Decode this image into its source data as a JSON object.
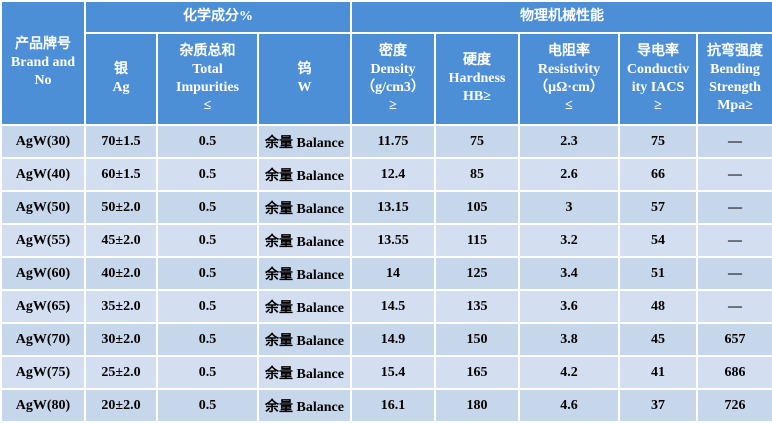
{
  "header": {
    "brand": [
      "产品牌号",
      "Brand and",
      "No"
    ],
    "group_chemical": "化学成分%",
    "group_physical": "物理机械性能",
    "columns": [
      [
        "银",
        "Ag"
      ],
      [
        "杂质总和",
        "Total",
        "Impurities",
        "≤"
      ],
      [
        "钨",
        "W"
      ],
      [
        "密度",
        "Density",
        "（g/cm3）",
        "≥"
      ],
      [
        "硬度",
        "Hardness",
        "HB≥"
      ],
      [
        "电阻率",
        "Resistivity",
        "（μΩ·cm）",
        "≤"
      ],
      [
        "导电率",
        "Conductiv",
        "ity IACS",
        "≥"
      ],
      [
        "抗弯强度",
        "Bending",
        "Strength",
        "Mpa≥"
      ]
    ]
  },
  "table": {
    "rows": [
      [
        "AgW(30)",
        "70±1.5",
        0.5,
        "余量 Balance",
        11.75,
        75,
        2.3,
        75,
        "—"
      ],
      [
        "AgW(40)",
        "60±1.5",
        0.5,
        "余量 Balance",
        12.4,
        85,
        2.6,
        66,
        "—"
      ],
      [
        "AgW(50)",
        "50±2.0",
        0.5,
        "余量 Balance",
        13.15,
        105,
        3,
        57,
        "—"
      ],
      [
        "AgW(55)",
        "45±2.0",
        0.5,
        "余量 Balance",
        13.55,
        115,
        3.2,
        54,
        "—"
      ],
      [
        "AgW(60)",
        "40±2.0",
        0.5,
        "余量 Balance",
        14,
        125,
        3.4,
        51,
        "—"
      ],
      [
        "AgW(65)",
        "35±2.0",
        0.5,
        "余量 Balance",
        14.5,
        135,
        3.6,
        48,
        "—"
      ],
      [
        "AgW(70)",
        "30±2.0",
        0.5,
        "余量 Balance",
        14.9,
        150,
        3.8,
        45,
        657
      ],
      [
        "AgW(75)",
        "25±2.0",
        0.5,
        "余量 Balance",
        15.4,
        165,
        4.2,
        41,
        686
      ],
      [
        "AgW(80)",
        "20±2.0",
        0.5,
        "余量 Balance",
        16.1,
        180,
        4.6,
        37,
        726
      ]
    ]
  }
}
